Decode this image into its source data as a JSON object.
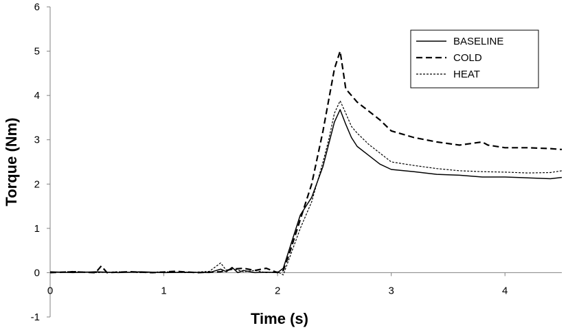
{
  "chart_data": {
    "type": "line",
    "title": "",
    "xlabel": "Time (s)",
    "ylabel": "Torque (Nm)",
    "xlim": [
      0,
      4.5
    ],
    "ylim": [
      -1,
      6
    ],
    "x_ticks": [
      0,
      1,
      2,
      3,
      4
    ],
    "y_ticks": [
      -1,
      0,
      1,
      2,
      3,
      4,
      5,
      6
    ],
    "grid": false,
    "legend_position": "top-right",
    "series": [
      {
        "name": "BASELINE",
        "style": "solid",
        "color": "#000000",
        "points": [
          [
            0,
            0.02
          ],
          [
            0.2,
            0.0
          ],
          [
            0.4,
            0.02
          ],
          [
            0.6,
            0.0
          ],
          [
            0.8,
            0.02
          ],
          [
            1.0,
            0.0
          ],
          [
            1.2,
            0.01
          ],
          [
            1.4,
            0.0
          ],
          [
            1.5,
            0.08
          ],
          [
            1.55,
            0.02
          ],
          [
            1.6,
            0.12
          ],
          [
            1.65,
            0.0
          ],
          [
            1.7,
            0.05
          ],
          [
            1.8,
            0.0
          ],
          [
            1.9,
            0.01
          ],
          [
            2.0,
            0.0
          ],
          [
            2.05,
            0.1
          ],
          [
            2.1,
            0.5
          ],
          [
            2.2,
            1.3
          ],
          [
            2.3,
            1.7
          ],
          [
            2.4,
            2.4
          ],
          [
            2.45,
            2.9
          ],
          [
            2.5,
            3.4
          ],
          [
            2.55,
            3.68
          ],
          [
            2.6,
            3.35
          ],
          [
            2.65,
            3.05
          ],
          [
            2.7,
            2.85
          ],
          [
            2.8,
            2.65
          ],
          [
            2.9,
            2.45
          ],
          [
            3.0,
            2.33
          ],
          [
            3.2,
            2.28
          ],
          [
            3.4,
            2.22
          ],
          [
            3.6,
            2.2
          ],
          [
            3.8,
            2.16
          ],
          [
            4.0,
            2.16
          ],
          [
            4.2,
            2.14
          ],
          [
            4.4,
            2.12
          ],
          [
            4.5,
            2.15
          ]
        ]
      },
      {
        "name": "COLD",
        "style": "dashed",
        "color": "#000000",
        "points": [
          [
            0,
            0.0
          ],
          [
            0.2,
            0.02
          ],
          [
            0.4,
            0.0
          ],
          [
            0.45,
            0.15
          ],
          [
            0.5,
            0.0
          ],
          [
            0.7,
            0.02
          ],
          [
            0.9,
            0.0
          ],
          [
            1.1,
            0.03
          ],
          [
            1.3,
            0.0
          ],
          [
            1.5,
            0.02
          ],
          [
            1.6,
            0.08
          ],
          [
            1.7,
            0.1
          ],
          [
            1.8,
            0.05
          ],
          [
            1.9,
            0.1
          ],
          [
            2.0,
            0.0
          ],
          [
            2.05,
            0.05
          ],
          [
            2.1,
            0.4
          ],
          [
            2.2,
            1.2
          ],
          [
            2.3,
            2.0
          ],
          [
            2.4,
            3.2
          ],
          [
            2.45,
            3.9
          ],
          [
            2.5,
            4.6
          ],
          [
            2.55,
            5.0
          ],
          [
            2.58,
            4.5
          ],
          [
            2.6,
            4.15
          ],
          [
            2.7,
            3.85
          ],
          [
            2.8,
            3.65
          ],
          [
            2.9,
            3.45
          ],
          [
            3.0,
            3.2
          ],
          [
            3.2,
            3.05
          ],
          [
            3.4,
            2.95
          ],
          [
            3.6,
            2.88
          ],
          [
            3.8,
            2.95
          ],
          [
            3.85,
            2.88
          ],
          [
            4.0,
            2.82
          ],
          [
            4.2,
            2.82
          ],
          [
            4.4,
            2.8
          ],
          [
            4.5,
            2.78
          ]
        ]
      },
      {
        "name": "HEAT",
        "style": "dotted",
        "color": "#000000",
        "points": [
          [
            0,
            0.0
          ],
          [
            0.2,
            0.03
          ],
          [
            0.4,
            0.0
          ],
          [
            0.6,
            0.02
          ],
          [
            0.8,
            0.0
          ],
          [
            1.0,
            0.02
          ],
          [
            1.2,
            0.0
          ],
          [
            1.4,
            0.03
          ],
          [
            1.5,
            0.22
          ],
          [
            1.55,
            0.05
          ],
          [
            1.6,
            0.1
          ],
          [
            1.7,
            0.02
          ],
          [
            1.8,
            0.05
          ],
          [
            1.9,
            0.0
          ],
          [
            2.0,
            0.02
          ],
          [
            2.05,
            -0.05
          ],
          [
            2.1,
            0.3
          ],
          [
            2.2,
            1.0
          ],
          [
            2.3,
            1.6
          ],
          [
            2.4,
            2.5
          ],
          [
            2.45,
            3.0
          ],
          [
            2.5,
            3.6
          ],
          [
            2.55,
            3.88
          ],
          [
            2.6,
            3.6
          ],
          [
            2.65,
            3.3
          ],
          [
            2.7,
            3.15
          ],
          [
            2.8,
            2.9
          ],
          [
            2.9,
            2.7
          ],
          [
            3.0,
            2.5
          ],
          [
            3.2,
            2.42
          ],
          [
            3.4,
            2.35
          ],
          [
            3.6,
            2.3
          ],
          [
            3.8,
            2.28
          ],
          [
            4.0,
            2.27
          ],
          [
            4.2,
            2.25
          ],
          [
            4.4,
            2.26
          ],
          [
            4.5,
            2.3
          ]
        ]
      }
    ]
  }
}
